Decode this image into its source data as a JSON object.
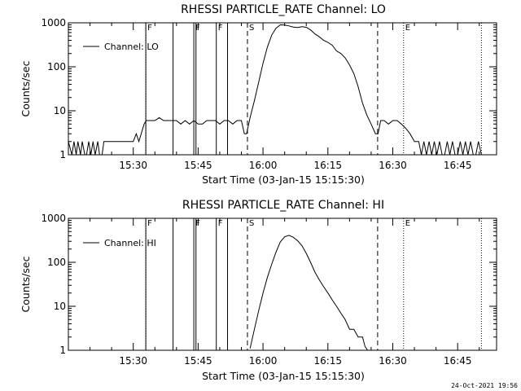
{
  "footer": {
    "timestamp": "24-Oct-2021 19:56"
  },
  "colors": {
    "background": "#ffffff",
    "foreground": "#000000"
  },
  "chart_data": [
    {
      "type": "line",
      "title": "RHESSI PARTICLE_RATE Channel: LO",
      "xlabel": "Start Time (03-Jan-15 15:15:30)",
      "ylabel": "Counts/sec",
      "x_unit": "minutes after 15:15:30",
      "xlim": [
        0,
        99
      ],
      "ylim": [
        1,
        1000
      ],
      "yscale": "log",
      "x_ticks": [
        {
          "x": 15,
          "label": "15:30"
        },
        {
          "x": 30,
          "label": "15:45"
        },
        {
          "x": 45,
          "label": "16:00"
        },
        {
          "x": 60,
          "label": "16:15"
        },
        {
          "x": 75,
          "label": "16:30"
        },
        {
          "x": 90,
          "label": "16:45"
        }
      ],
      "y_ticks": [
        {
          "y": 1,
          "label": "1"
        },
        {
          "y": 10,
          "label": "10"
        },
        {
          "y": 100,
          "label": "100"
        },
        {
          "y": 1000,
          "label": "1000"
        }
      ],
      "legend": {
        "label": "Channel: LO",
        "placement": "top-left"
      },
      "markers": [
        {
          "x": 17.9,
          "style": "dotted",
          "label": "F"
        },
        {
          "x": 17.9,
          "style": "solid",
          "label": ""
        },
        {
          "x": 24.2,
          "style": "solid",
          "label": ""
        },
        {
          "x": 29.0,
          "style": "solid",
          "label": "F"
        },
        {
          "x": 29.5,
          "style": "solid",
          "label": ""
        },
        {
          "x": 34.2,
          "style": "solid",
          "label": "F"
        },
        {
          "x": 36.8,
          "style": "solid",
          "label": ""
        },
        {
          "x": 41.4,
          "style": "dashed",
          "label": "S"
        },
        {
          "x": 71.5,
          "style": "dashed",
          "label": ""
        },
        {
          "x": 77.5,
          "style": "dotted",
          "label": "E"
        },
        {
          "x": 95.5,
          "style": "dotted",
          "label": ""
        }
      ],
      "series": [
        {
          "x": [
            0,
            0.8,
            1.3,
            1.8,
            2.2,
            2.8,
            3.2,
            3.8,
            4.2,
            4.7,
            5.2,
            5.7,
            6.2,
            6.8,
            7.2,
            7.8,
            8.2,
            9,
            10,
            11,
            12,
            13,
            14,
            15,
            15.7,
            16.3,
            17.5,
            18,
            19,
            20,
            21,
            22,
            23,
            24,
            25,
            26,
            27,
            28,
            29,
            30,
            31,
            32,
            33,
            34,
            35,
            36,
            37,
            38,
            39,
            40,
            40.7,
            41.2,
            42,
            43,
            44,
            45,
            46,
            47,
            48,
            49,
            50,
            51,
            52,
            53,
            54,
            55,
            56,
            57,
            58,
            59,
            60,
            61,
            62,
            63,
            64,
            65,
            66,
            67,
            68,
            69,
            70,
            71,
            71.6,
            72.2,
            73,
            74,
            75,
            76,
            77,
            78,
            79,
            80,
            81,
            81.6,
            82.2,
            82.8,
            83.4,
            84,
            84.6,
            85.2,
            85.8,
            86.4,
            87,
            87.6,
            88.2,
            88.8,
            89.4,
            90,
            90.6,
            91.2,
            91.8,
            92.4,
            93,
            93.6,
            94.2,
            94.8,
            95.5
          ],
          "y": [
            2,
            1,
            2,
            1,
            2,
            1,
            2,
            1,
            1,
            2,
            1,
            2,
            1,
            2,
            1,
            1,
            2,
            2,
            2,
            2,
            2,
            2,
            2,
            2,
            3,
            2,
            5,
            6,
            6,
            6,
            7,
            6,
            6,
            6,
            6,
            5,
            6,
            5,
            6,
            5,
            5,
            6,
            6,
            6,
            5,
            6,
            6,
            5,
            6,
            6,
            3,
            3,
            7,
            17,
            45,
            120,
            280,
            520,
            750,
            900,
            890,
            850,
            800,
            780,
            820,
            790,
            690,
            560,
            480,
            400,
            360,
            310,
            230,
            200,
            160,
            110,
            70,
            35,
            15,
            8,
            5,
            3,
            3,
            6,
            6,
            5,
            6,
            6,
            5,
            4,
            3,
            2,
            2,
            1,
            2,
            1,
            2,
            1,
            2,
            1,
            2,
            1,
            1,
            2,
            1,
            2,
            1,
            1,
            2,
            1,
            2,
            1,
            2,
            1,
            1,
            2,
            1
          ]
        }
      ]
    },
    {
      "type": "line",
      "title": "RHESSI PARTICLE_RATE Channel: HI",
      "xlabel": "Start Time (03-Jan-15 15:15:30)",
      "ylabel": "Counts/sec",
      "x_unit": "minutes after 15:15:30",
      "xlim": [
        0,
        99
      ],
      "ylim": [
        1,
        1000
      ],
      "yscale": "log",
      "x_ticks": [
        {
          "x": 15,
          "label": "15:30"
        },
        {
          "x": 30,
          "label": "15:45"
        },
        {
          "x": 45,
          "label": "16:00"
        },
        {
          "x": 60,
          "label": "16:15"
        },
        {
          "x": 75,
          "label": "16:30"
        },
        {
          "x": 90,
          "label": "16:45"
        }
      ],
      "y_ticks": [
        {
          "y": 1,
          "label": "1"
        },
        {
          "y": 10,
          "label": "10"
        },
        {
          "y": 100,
          "label": "100"
        },
        {
          "y": 1000,
          "label": "1000"
        }
      ],
      "legend": {
        "label": "Channel: HI",
        "placement": "top-left"
      },
      "markers": [
        {
          "x": 17.9,
          "style": "dotted",
          "label": "F"
        },
        {
          "x": 17.9,
          "style": "solid",
          "label": ""
        },
        {
          "x": 24.2,
          "style": "solid",
          "label": ""
        },
        {
          "x": 29.0,
          "style": "solid",
          "label": "F"
        },
        {
          "x": 29.5,
          "style": "solid",
          "label": ""
        },
        {
          "x": 34.2,
          "style": "solid",
          "label": "F"
        },
        {
          "x": 36.8,
          "style": "solid",
          "label": ""
        },
        {
          "x": 41.4,
          "style": "dashed",
          "label": "S"
        },
        {
          "x": 71.5,
          "style": "dashed",
          "label": ""
        },
        {
          "x": 77.5,
          "style": "dotted",
          "label": "E"
        },
        {
          "x": 95.5,
          "style": "dotted",
          "label": ""
        }
      ],
      "series": [
        {
          "x": [
            42,
            43,
            44,
            45,
            46,
            47,
            48,
            49,
            50,
            51,
            52,
            53,
            54,
            55,
            56,
            57,
            58,
            59,
            60,
            61,
            62,
            63,
            64,
            65,
            66,
            67,
            68,
            68.6,
            69.2
          ],
          "y": [
            1.1,
            3,
            8,
            20,
            45,
            90,
            170,
            290,
            380,
            410,
            370,
            310,
            240,
            160,
            100,
            60,
            40,
            28,
            20,
            14,
            10,
            7,
            5,
            3,
            3,
            2,
            2,
            1.2,
            1
          ]
        }
      ]
    }
  ]
}
